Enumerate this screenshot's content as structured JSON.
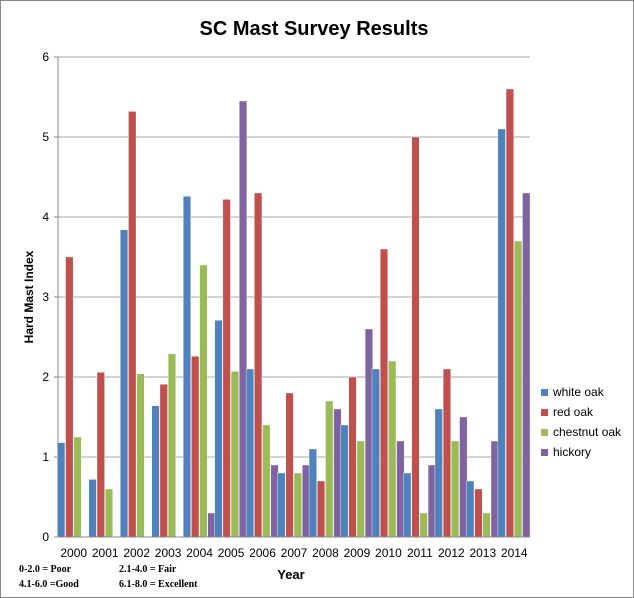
{
  "chart_data": {
    "type": "bar",
    "title": "SC Mast Survey Results",
    "xlabel": "Year",
    "ylabel": "Hard Mast Index",
    "ylim": [
      0,
      6
    ],
    "yticks": [
      0,
      1,
      2,
      3,
      4,
      5,
      6
    ],
    "grid": true,
    "legend_position": "right",
    "categories": [
      "2000",
      "2001",
      "2002",
      "2003",
      "2004",
      "2005",
      "2006",
      "2007",
      "2008",
      "2009",
      "2010",
      "2011",
      "2012",
      "2013",
      "2014"
    ],
    "series": [
      {
        "name": "white oak",
        "color": "#4F81BD",
        "values": [
          1.18,
          0.72,
          3.84,
          1.64,
          4.26,
          2.71,
          2.1,
          0.8,
          1.1,
          1.4,
          2.1,
          0.8,
          1.6,
          0.7,
          5.1
        ]
      },
      {
        "name": "red oak",
        "color": "#C0504D",
        "values": [
          3.5,
          2.06,
          5.32,
          1.91,
          2.26,
          4.22,
          4.3,
          1.8,
          0.7,
          2.0,
          3.6,
          5.0,
          2.1,
          0.6,
          5.6
        ]
      },
      {
        "name": "chestnut oak",
        "color": "#9BBB59",
        "values": [
          1.25,
          0.6,
          2.04,
          2.29,
          3.4,
          2.07,
          1.4,
          0.8,
          1.7,
          1.2,
          2.2,
          0.3,
          1.2,
          0.3,
          3.7
        ]
      },
      {
        "name": "hickory",
        "color": "#8064A2",
        "values": [
          0,
          0,
          0,
          0,
          0.3,
          5.45,
          0.9,
          0.9,
          1.6,
          2.6,
          1.2,
          0.9,
          1.5,
          1.2,
          4.3
        ]
      }
    ],
    "annotations": [
      "0-2.0 = Poor",
      "2.1-4.0 = Fair",
      "4.1-6.0 =Good",
      "6.1-8.0 = Excellent"
    ]
  }
}
